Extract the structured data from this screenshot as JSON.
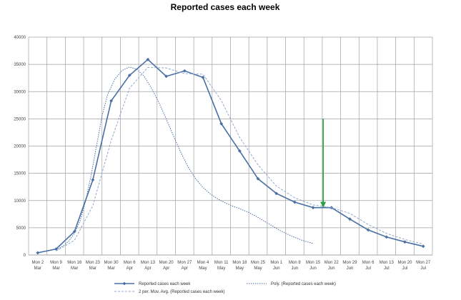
{
  "chart_data": {
    "type": "line",
    "title": "Reported cases each week",
    "xlabel": "",
    "ylabel": "",
    "ylim": [
      0,
      40000
    ],
    "yticks": [
      0,
      5000,
      10000,
      15000,
      20000,
      25000,
      30000,
      35000,
      40000
    ],
    "grid": "vertical-and-horizontal",
    "categories": [
      "Mon 2 Mar",
      "Mon 9 Mar",
      "Mon 16 Mar",
      "Mon 23 Mar",
      "Mon 30 Mar",
      "Mon 6 Apr",
      "Mon 13 Apr",
      "Mon 20 Apr",
      "Mon 27 Apr",
      "Mon 4 May",
      "Mon 11 May",
      "Mon 18 May",
      "Mon 25 May",
      "Mon 1 Jun",
      "Mon 8 Jun",
      "Mon 15 Jun",
      "Mon 22 Jun",
      "Mon 29 Jun",
      "Mon 6 Jul",
      "Mon 13 Jul",
      "Mon 20 Jul",
      "Mon 27 Jul"
    ],
    "series": [
      {
        "name": "Reported cases each week",
        "style": "solid-with-diamond-markers",
        "color": "#4a6fa5",
        "values": [
          400,
          1100,
          4300,
          13800,
          28300,
          33000,
          35900,
          32800,
          33800,
          32600,
          24100,
          19100,
          14000,
          11300,
          9700,
          8700,
          8700,
          6600,
          4600,
          3300,
          2400,
          1600
        ]
      },
      {
        "name": "Poly. (Reported cases each week)",
        "style": "dotted",
        "color": "#4a6fa5",
        "points": [
          [
            1.0,
            900
          ],
          [
            1.4,
            1700
          ],
          [
            1.7,
            2600
          ],
          [
            2.0,
            4000
          ],
          [
            2.3,
            6200
          ],
          [
            2.6,
            9800
          ],
          [
            2.9,
            14500
          ],
          [
            3.2,
            20000
          ],
          [
            3.5,
            25500
          ],
          [
            3.8,
            29400
          ],
          [
            4.2,
            32300
          ],
          [
            4.6,
            33900
          ],
          [
            5.0,
            34500
          ],
          [
            5.4,
            34100
          ],
          [
            5.8,
            32800
          ],
          [
            6.2,
            30600
          ],
          [
            6.6,
            28000
          ],
          [
            7.0,
            25000
          ],
          [
            7.4,
            21800
          ],
          [
            7.8,
            18800
          ],
          [
            8.2,
            16100
          ],
          [
            8.6,
            14000
          ],
          [
            9.0,
            12400
          ],
          [
            9.4,
            11200
          ],
          [
            9.8,
            10300
          ],
          [
            10.2,
            9600
          ],
          [
            10.6,
            9000
          ],
          [
            11.0,
            8500
          ],
          [
            11.5,
            7800
          ],
          [
            12.0,
            6900
          ],
          [
            12.6,
            5700
          ],
          [
            13.2,
            4500
          ],
          [
            13.8,
            3500
          ],
          [
            14.4,
            2700
          ],
          [
            15.0,
            2100
          ]
        ]
      },
      {
        "name": "2 per. Mov. Avg. (Reported cases each week)",
        "style": "dashed",
        "color": "#8fa8cc",
        "values": [
          null,
          750,
          2700,
          9050,
          21050,
          30650,
          34450,
          34350,
          33300,
          33200,
          28350,
          21600,
          16550,
          12650,
          10500,
          9200,
          8700,
          7650,
          5600,
          3950,
          2850,
          2000
        ]
      }
    ],
    "annotations": [
      {
        "type": "arrow",
        "color": "#2e9e44",
        "at_category": "Mon 15 Jun",
        "from_y": 25000,
        "to_y": 8700,
        "direction": "down"
      }
    ],
    "legend": {
      "placement": "bottom",
      "entries": [
        "Reported cases each week",
        "Poly. (Reported cases each week)",
        "2 per. Mov. Avg. (Reported cases each week)"
      ]
    }
  }
}
